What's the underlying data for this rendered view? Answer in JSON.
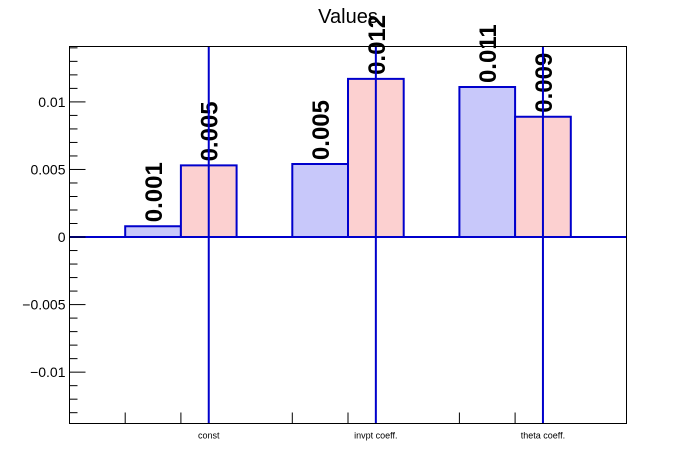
{
  "chart_data": {
    "type": "bar",
    "title": "Values",
    "xlabel": "",
    "ylabel": "",
    "categories": [
      "const",
      "invpt coeff.",
      "theta coeff."
    ],
    "series": [
      {
        "values": [
          0.0008,
          0.0054,
          0.0111
        ],
        "labels": [
          "0.001",
          "0.005",
          "0.011"
        ],
        "color": "#c8c8fa"
      },
      {
        "values": [
          0.0053,
          0.0117,
          0.0089
        ],
        "labels": [
          "0.005",
          "0.012",
          "0.009"
        ],
        "color": "#fcd0d0"
      }
    ],
    "ylim": [
      -0.0138,
      0.0141
    ],
    "yticks": [
      -0.01,
      -0.005,
      0,
      0.005,
      0.01
    ],
    "ytick_labels": [
      "−0.01",
      "−0.005",
      "0",
      "0.005",
      "0.01"
    ],
    "zero_line": true,
    "grid": false,
    "colors": {
      "edge": "#0000cc",
      "frame": "#000000"
    }
  }
}
